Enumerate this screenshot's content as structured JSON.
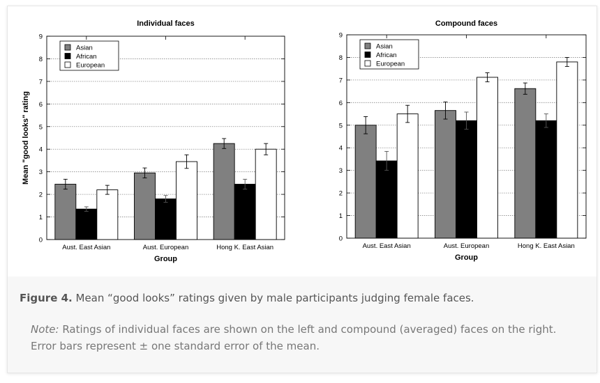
{
  "caption": {
    "label": "Figure 4.",
    "text": " Mean “good looks” ratings given by male participants judging female faces.",
    "note_label": "Note:",
    "note_text": " Ratings of individual faces are shown on the left and compound (averaged) faces on the right. Error bars represent ± one standard error of the mean."
  },
  "colors": {
    "Asian": "#808080",
    "African": "#000000",
    "European": "#ffffff"
  },
  "chart_data": [
    {
      "type": "bar",
      "title": "Individual faces",
      "xlabel": "Group",
      "ylabel": "Mean \"good looks\" rating",
      "ylim": [
        0,
        9
      ],
      "yticks": [
        0,
        1,
        2,
        3,
        4,
        5,
        6,
        7,
        8,
        9
      ],
      "grid": "horizontal dashed",
      "legend_position": "top-left",
      "categories": [
        "Aust. East Asian",
        "Aust. European",
        "Hong K. East Asian"
      ],
      "series": [
        {
          "name": "Asian",
          "values": [
            2.45,
            2.95,
            4.25
          ],
          "errors": [
            0.22,
            0.22,
            0.22
          ]
        },
        {
          "name": "African",
          "values": [
            1.35,
            1.8,
            2.45
          ],
          "errors": [
            0.1,
            0.15,
            0.22
          ]
        },
        {
          "name": "European",
          "values": [
            2.2,
            3.45,
            4.0
          ],
          "errors": [
            0.2,
            0.3,
            0.25
          ]
        }
      ]
    },
    {
      "type": "bar",
      "title": "Compound faces",
      "xlabel": "Group",
      "ylabel": "",
      "ylim": [
        0,
        9
      ],
      "yticks": [
        0,
        1,
        2,
        3,
        4,
        5,
        6,
        7,
        8,
        9
      ],
      "grid": "horizontal dashed",
      "legend_position": "top-left",
      "categories": [
        "Aust. East Asian",
        "Aust. European",
        "Hong K. East Asian"
      ],
      "series": [
        {
          "name": "Asian",
          "values": [
            5.0,
            5.65,
            6.62
          ],
          "errors": [
            0.38,
            0.38,
            0.25
          ]
        },
        {
          "name": "African",
          "values": [
            3.42,
            5.2,
            5.2
          ],
          "errors": [
            0.42,
            0.38,
            0.3
          ]
        },
        {
          "name": "European",
          "values": [
            5.5,
            7.12,
            7.8
          ],
          "errors": [
            0.38,
            0.2,
            0.2
          ]
        }
      ]
    }
  ]
}
